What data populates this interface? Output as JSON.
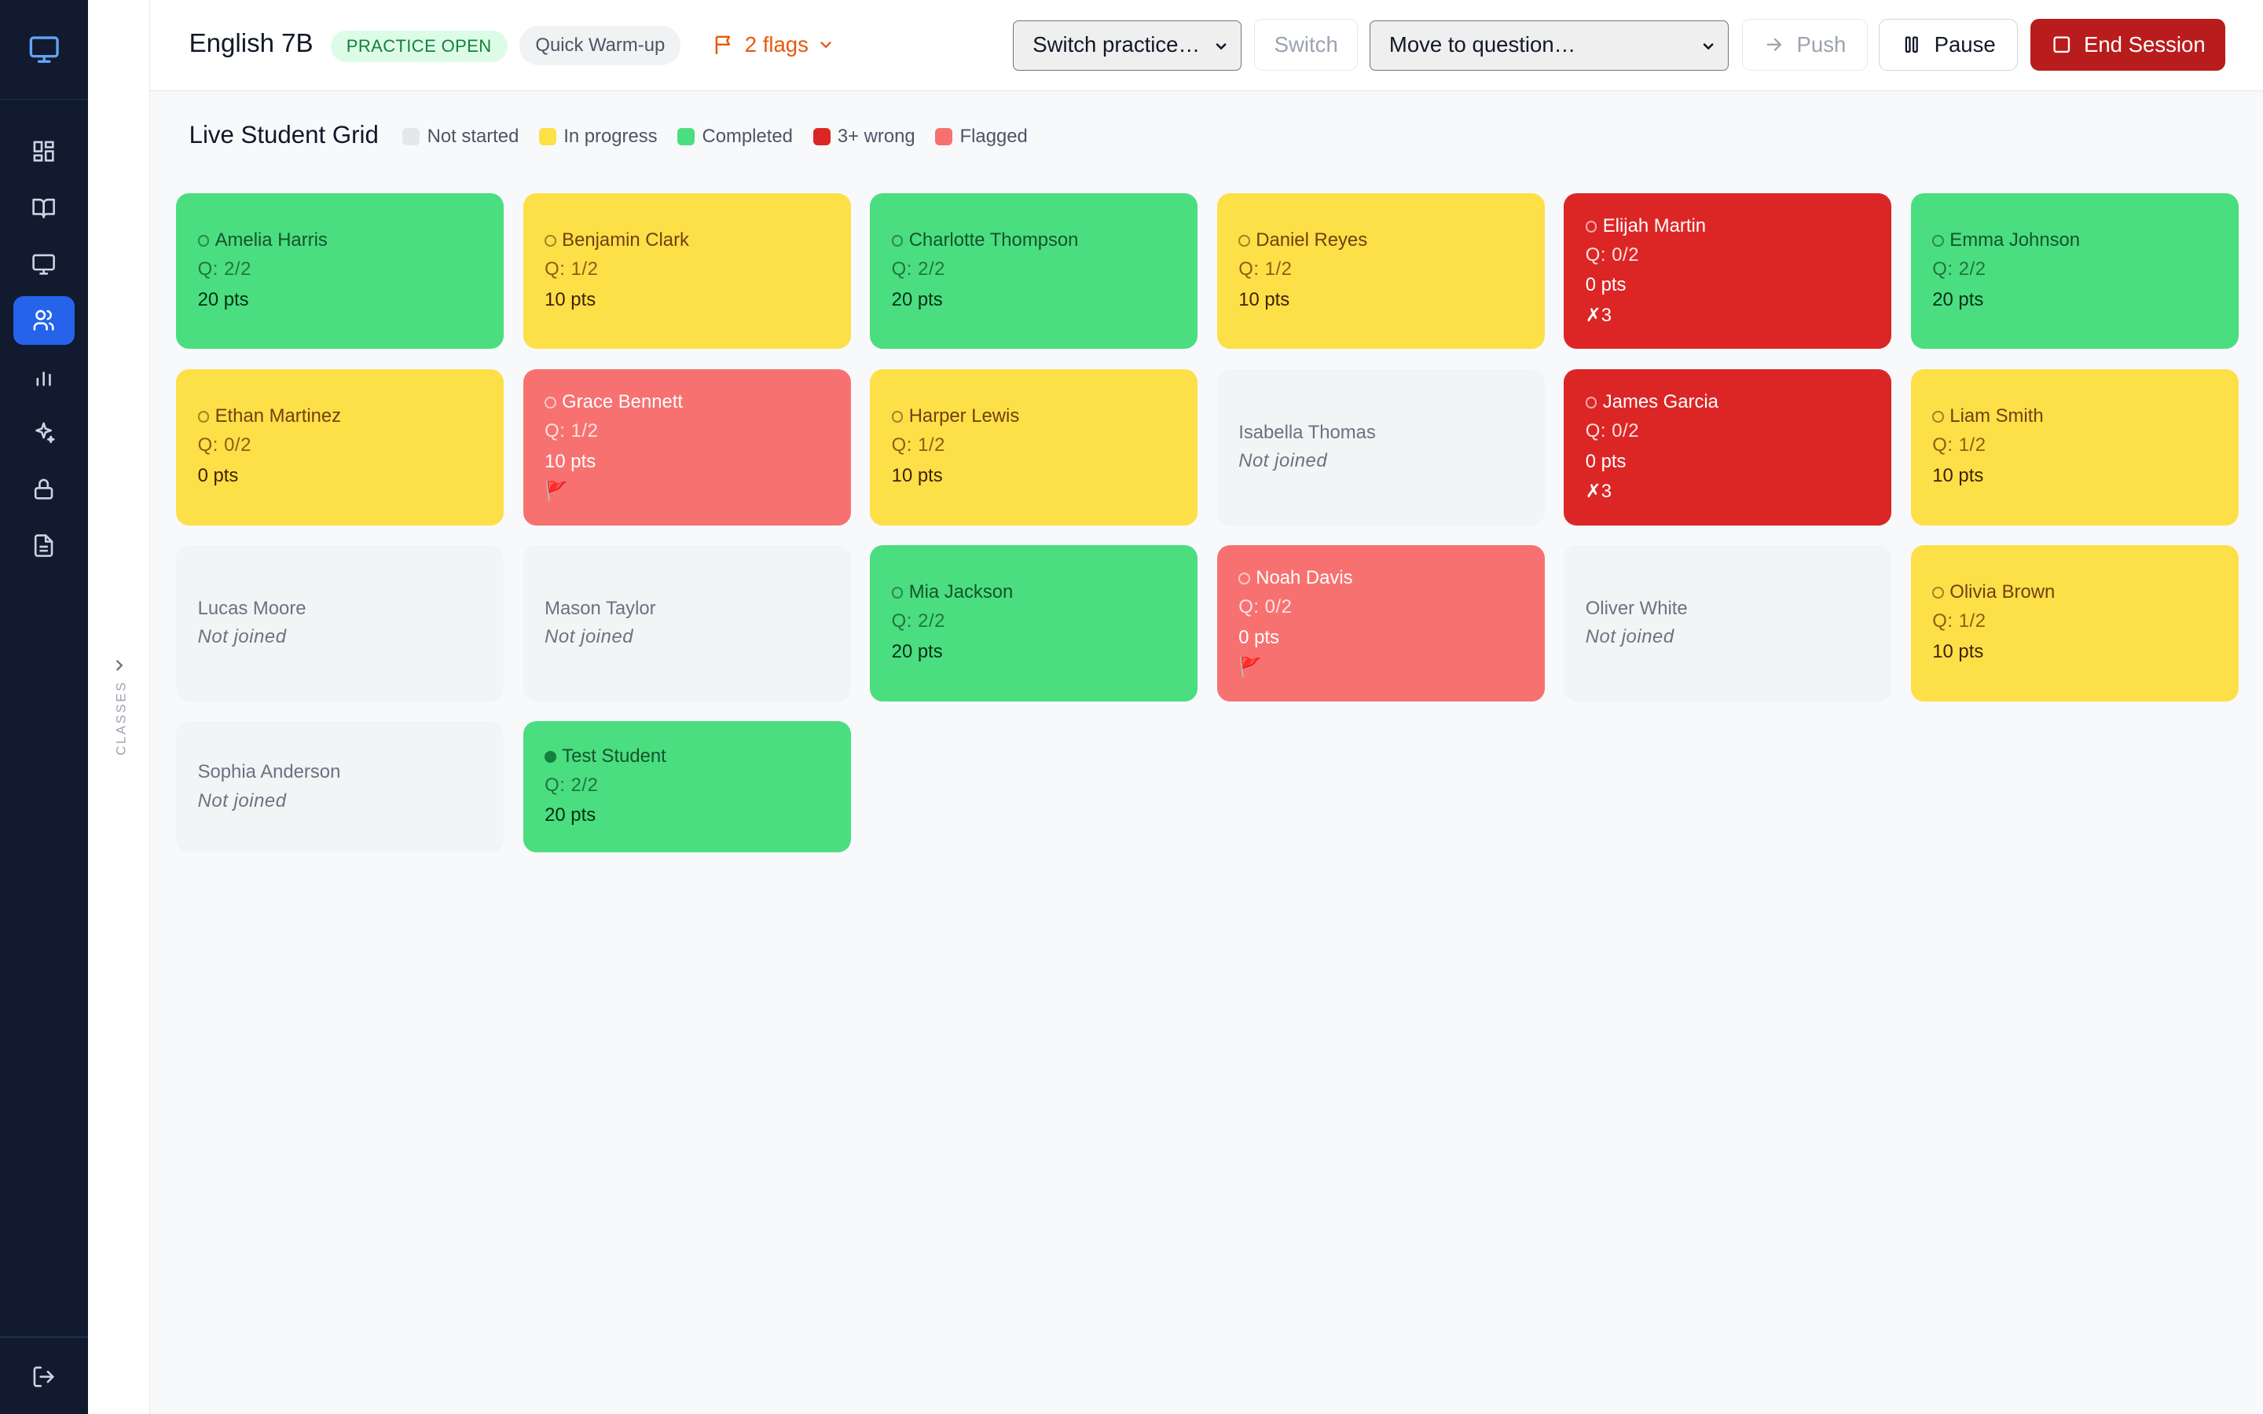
{
  "sidebar": {
    "items": [
      {
        "icon": "dashboard-icon",
        "active": false
      },
      {
        "icon": "book-icon",
        "active": false
      },
      {
        "icon": "monitor-icon",
        "active": false
      },
      {
        "icon": "users-icon",
        "active": true
      },
      {
        "icon": "bar-chart-icon",
        "active": false
      },
      {
        "icon": "sparkles-icon",
        "active": false
      },
      {
        "icon": "lock-icon",
        "active": false
      },
      {
        "icon": "document-icon",
        "active": false
      }
    ],
    "classes_label": "CLASSES"
  },
  "header": {
    "title": "English 7B",
    "status_badge": "PRACTICE OPEN",
    "mode_badge": "Quick Warm-up",
    "flags_label": "2 flags",
    "switch_select": "Switch practice…",
    "switch_button": "Switch",
    "question_select": "Move to question…",
    "push_button": "Push",
    "pause_button": "Pause",
    "end_button": "End Session"
  },
  "main": {
    "title": "Live Student Grid",
    "legend": [
      {
        "label": "Not started",
        "color": "#e5e7eb"
      },
      {
        "label": "In progress",
        "color": "#fde047"
      },
      {
        "label": "Completed",
        "color": "#4ade80"
      },
      {
        "label": "3+ wrong",
        "color": "#dc2626"
      },
      {
        "label": "Flagged",
        "color": "#f87171"
      }
    ],
    "students": [
      {
        "name": "Amelia Harris",
        "status": "completed",
        "q": "Q: 2/2",
        "pts": "20 pts"
      },
      {
        "name": "Benjamin Clark",
        "status": "progress",
        "q": "Q: 1/2",
        "pts": "10 pts"
      },
      {
        "name": "Charlotte Thompson",
        "status": "completed",
        "q": "Q: 2/2",
        "pts": "20 pts"
      },
      {
        "name": "Daniel Reyes",
        "status": "progress",
        "q": "Q: 1/2",
        "pts": "10 pts"
      },
      {
        "name": "Elijah Martin",
        "status": "wrong",
        "q": "Q: 0/2",
        "pts": "0 pts",
        "extra": "✗3"
      },
      {
        "name": "Emma Johnson",
        "status": "completed",
        "q": "Q: 2/2",
        "pts": "20 pts"
      },
      {
        "name": "Ethan Martinez",
        "status": "progress",
        "q": "Q: 0/2",
        "pts": "0 pts"
      },
      {
        "name": "Grace Bennett",
        "status": "flagged",
        "q": "Q: 1/2",
        "pts": "10 pts",
        "extra": "🚩"
      },
      {
        "name": "Harper Lewis",
        "status": "progress",
        "q": "Q: 1/2",
        "pts": "10 pts"
      },
      {
        "name": "Isabella Thomas",
        "status": "none",
        "q": "Not joined"
      },
      {
        "name": "James Garcia",
        "status": "wrong",
        "q": "Q: 0/2",
        "pts": "0 pts",
        "extra": "✗3"
      },
      {
        "name": "Liam Smith",
        "status": "progress",
        "q": "Q: 1/2",
        "pts": "10 pts"
      },
      {
        "name": "Lucas Moore",
        "status": "none",
        "q": "Not joined"
      },
      {
        "name": "Mason Taylor",
        "status": "none",
        "q": "Not joined"
      },
      {
        "name": "Mia Jackson",
        "status": "completed",
        "q": "Q: 2/2",
        "pts": "20 pts"
      },
      {
        "name": "Noah Davis",
        "status": "flagged",
        "q": "Q: 0/2",
        "pts": "0 pts",
        "extra": "🚩"
      },
      {
        "name": "Oliver White",
        "status": "none",
        "q": "Not joined"
      },
      {
        "name": "Olivia Brown",
        "status": "progress",
        "q": "Q: 1/2",
        "pts": "10 pts"
      },
      {
        "name": "Sophia Anderson",
        "status": "none",
        "q": "Not joined"
      },
      {
        "name": "Test Student",
        "status": "completed",
        "online": true,
        "q": "Q: 2/2",
        "pts": "20 pts"
      }
    ]
  }
}
